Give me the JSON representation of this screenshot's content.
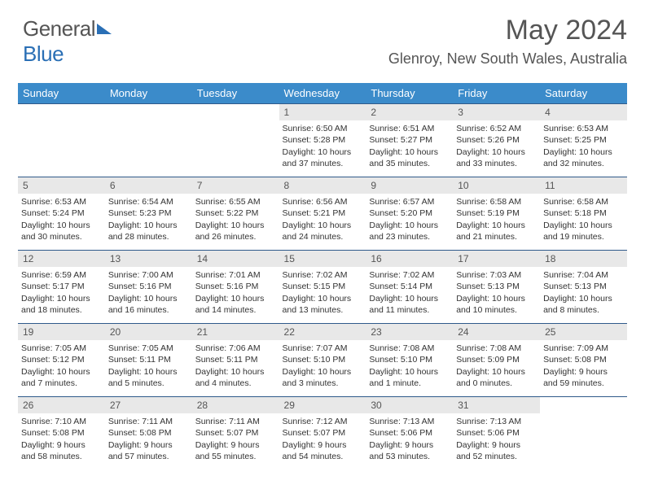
{
  "logo": {
    "part1": "General",
    "part2": "Blue"
  },
  "title": "May 2024",
  "location": "Glenroy, New South Wales, Australia",
  "weekdays": [
    "Sunday",
    "Monday",
    "Tuesday",
    "Wednesday",
    "Thursday",
    "Friday",
    "Saturday"
  ],
  "colors": {
    "header_bg": "#3b8bca",
    "header_text": "#ffffff",
    "row_border": "#2f5a8a",
    "daynum_bg": "#e8e8e8",
    "text": "#333333",
    "logo_blue": "#2a6fb5"
  },
  "weeks": [
    [
      null,
      null,
      null,
      {
        "n": "1",
        "sunrise": "6:50 AM",
        "sunset": "5:28 PM",
        "daylight": "10 hours and 37 minutes."
      },
      {
        "n": "2",
        "sunrise": "6:51 AM",
        "sunset": "5:27 PM",
        "daylight": "10 hours and 35 minutes."
      },
      {
        "n": "3",
        "sunrise": "6:52 AM",
        "sunset": "5:26 PM",
        "daylight": "10 hours and 33 minutes."
      },
      {
        "n": "4",
        "sunrise": "6:53 AM",
        "sunset": "5:25 PM",
        "daylight": "10 hours and 32 minutes."
      }
    ],
    [
      {
        "n": "5",
        "sunrise": "6:53 AM",
        "sunset": "5:24 PM",
        "daylight": "10 hours and 30 minutes."
      },
      {
        "n": "6",
        "sunrise": "6:54 AM",
        "sunset": "5:23 PM",
        "daylight": "10 hours and 28 minutes."
      },
      {
        "n": "7",
        "sunrise": "6:55 AM",
        "sunset": "5:22 PM",
        "daylight": "10 hours and 26 minutes."
      },
      {
        "n": "8",
        "sunrise": "6:56 AM",
        "sunset": "5:21 PM",
        "daylight": "10 hours and 24 minutes."
      },
      {
        "n": "9",
        "sunrise": "6:57 AM",
        "sunset": "5:20 PM",
        "daylight": "10 hours and 23 minutes."
      },
      {
        "n": "10",
        "sunrise": "6:58 AM",
        "sunset": "5:19 PM",
        "daylight": "10 hours and 21 minutes."
      },
      {
        "n": "11",
        "sunrise": "6:58 AM",
        "sunset": "5:18 PM",
        "daylight": "10 hours and 19 minutes."
      }
    ],
    [
      {
        "n": "12",
        "sunrise": "6:59 AM",
        "sunset": "5:17 PM",
        "daylight": "10 hours and 18 minutes."
      },
      {
        "n": "13",
        "sunrise": "7:00 AM",
        "sunset": "5:16 PM",
        "daylight": "10 hours and 16 minutes."
      },
      {
        "n": "14",
        "sunrise": "7:01 AM",
        "sunset": "5:16 PM",
        "daylight": "10 hours and 14 minutes."
      },
      {
        "n": "15",
        "sunrise": "7:02 AM",
        "sunset": "5:15 PM",
        "daylight": "10 hours and 13 minutes."
      },
      {
        "n": "16",
        "sunrise": "7:02 AM",
        "sunset": "5:14 PM",
        "daylight": "10 hours and 11 minutes."
      },
      {
        "n": "17",
        "sunrise": "7:03 AM",
        "sunset": "5:13 PM",
        "daylight": "10 hours and 10 minutes."
      },
      {
        "n": "18",
        "sunrise": "7:04 AM",
        "sunset": "5:13 PM",
        "daylight": "10 hours and 8 minutes."
      }
    ],
    [
      {
        "n": "19",
        "sunrise": "7:05 AM",
        "sunset": "5:12 PM",
        "daylight": "10 hours and 7 minutes."
      },
      {
        "n": "20",
        "sunrise": "7:05 AM",
        "sunset": "5:11 PM",
        "daylight": "10 hours and 5 minutes."
      },
      {
        "n": "21",
        "sunrise": "7:06 AM",
        "sunset": "5:11 PM",
        "daylight": "10 hours and 4 minutes."
      },
      {
        "n": "22",
        "sunrise": "7:07 AM",
        "sunset": "5:10 PM",
        "daylight": "10 hours and 3 minutes."
      },
      {
        "n": "23",
        "sunrise": "7:08 AM",
        "sunset": "5:10 PM",
        "daylight": "10 hours and 1 minute."
      },
      {
        "n": "24",
        "sunrise": "7:08 AM",
        "sunset": "5:09 PM",
        "daylight": "10 hours and 0 minutes."
      },
      {
        "n": "25",
        "sunrise": "7:09 AM",
        "sunset": "5:08 PM",
        "daylight": "9 hours and 59 minutes."
      }
    ],
    [
      {
        "n": "26",
        "sunrise": "7:10 AM",
        "sunset": "5:08 PM",
        "daylight": "9 hours and 58 minutes."
      },
      {
        "n": "27",
        "sunrise": "7:11 AM",
        "sunset": "5:08 PM",
        "daylight": "9 hours and 57 minutes."
      },
      {
        "n": "28",
        "sunrise": "7:11 AM",
        "sunset": "5:07 PM",
        "daylight": "9 hours and 55 minutes."
      },
      {
        "n": "29",
        "sunrise": "7:12 AM",
        "sunset": "5:07 PM",
        "daylight": "9 hours and 54 minutes."
      },
      {
        "n": "30",
        "sunrise": "7:13 AM",
        "sunset": "5:06 PM",
        "daylight": "9 hours and 53 minutes."
      },
      {
        "n": "31",
        "sunrise": "7:13 AM",
        "sunset": "5:06 PM",
        "daylight": "9 hours and 52 minutes."
      },
      null
    ]
  ]
}
